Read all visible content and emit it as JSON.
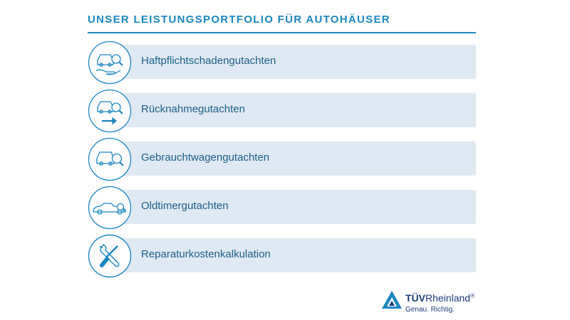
{
  "header": {
    "title": "UNSER LEISTUNGSPORTFOLIO FÜR AUTOHÄUSER"
  },
  "services": [
    {
      "label": "Haftpflichtschadengutachten",
      "icon": "car-hand-magnifier-icon"
    },
    {
      "label": "Rücknahmegutachten",
      "icon": "car-arrow-magnifier-icon"
    },
    {
      "label": "Gebrauchtwagengutachten",
      "icon": "car-magnifier-icon"
    },
    {
      "label": "Oldtimergutachten",
      "icon": "vintage-car-icon"
    },
    {
      "label": "Reparaturkostenkalkulation",
      "icon": "wrench-screwdriver-icon"
    }
  ],
  "logo": {
    "brand_bold": "TÜV",
    "brand_light": "Rheinland",
    "registered": "®",
    "tagline": "Genau. Richtig."
  },
  "colors": {
    "accent": "#1a86c0",
    "bar": "#dfe9f3",
    "text": "#1a5f8a",
    "logo": "#1b3c7a"
  }
}
